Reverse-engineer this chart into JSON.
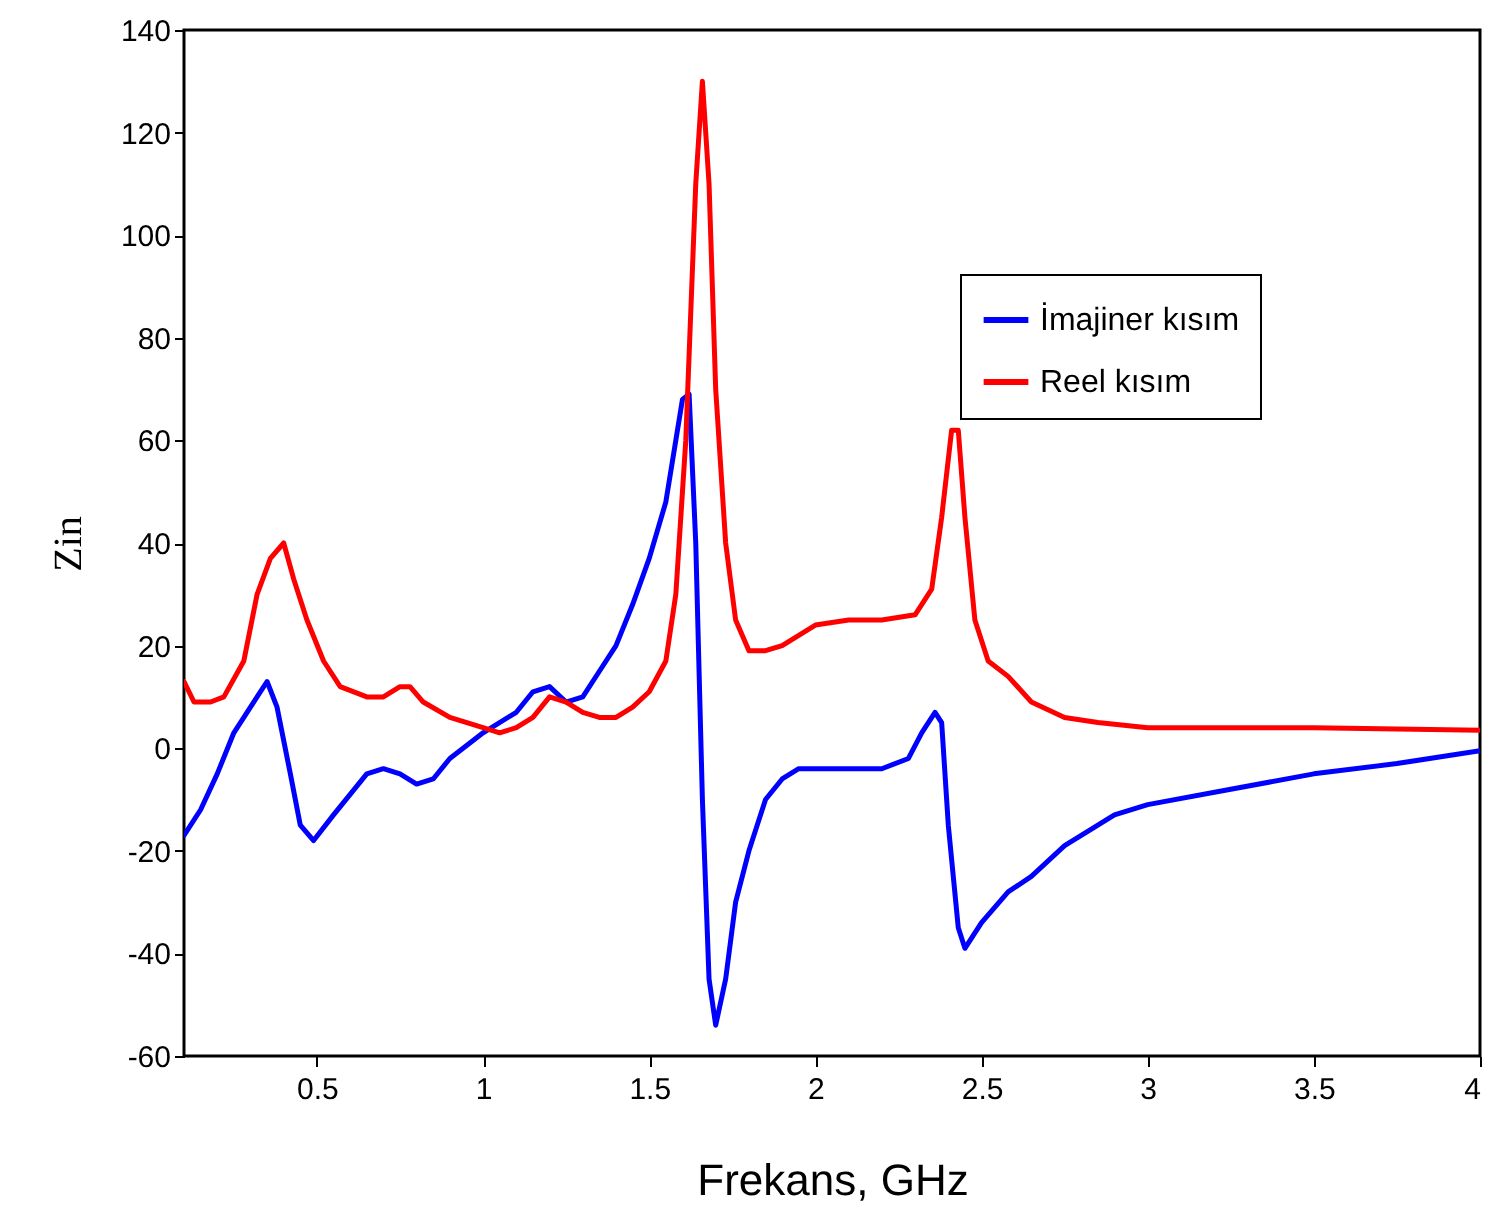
{
  "chart_data": {
    "type": "line",
    "xlabel": "Frekans, GHz",
    "ylabel": "Zin",
    "xlim": [
      0.1,
      4
    ],
    "xticks": [
      0.5,
      1,
      1.5,
      2,
      2.5,
      3,
      3.5,
      4
    ],
    "ylim": [
      -60,
      140
    ],
    "yticks": [
      -60,
      -40,
      -20,
      0,
      20,
      40,
      60,
      80,
      100,
      120,
      140
    ],
    "grid": false,
    "legend": "top right",
    "line_style": "solid",
    "series": [
      {
        "name": "İmajiner kısım",
        "color": "#0000ff",
        "x": [
          0.1,
          0.15,
          0.2,
          0.25,
          0.3,
          0.35,
          0.38,
          0.42,
          0.45,
          0.49,
          0.55,
          0.6,
          0.65,
          0.7,
          0.75,
          0.8,
          0.85,
          0.9,
          1.0,
          1.1,
          1.15,
          1.2,
          1.25,
          1.3,
          1.35,
          1.4,
          1.45,
          1.5,
          1.55,
          1.6,
          1.62,
          1.64,
          1.66,
          1.68,
          1.7,
          1.73,
          1.76,
          1.8,
          1.85,
          1.9,
          1.95,
          2.0,
          2.2,
          2.28,
          2.32,
          2.36,
          2.38,
          2.4,
          2.43,
          2.45,
          2.5,
          2.58,
          2.65,
          2.75,
          2.9,
          3.0,
          3.25,
          3.5,
          3.75,
          4.0
        ],
        "values": [
          -17,
          -12,
          -5,
          3,
          8,
          13,
          8,
          -5,
          -15,
          -18,
          -13,
          -9,
          -5,
          -4,
          -5,
          -7,
          -6,
          -2,
          3,
          7,
          11,
          12,
          9,
          10,
          15,
          20,
          28,
          37,
          48,
          68,
          69,
          40,
          -10,
          -45,
          -54,
          -45,
          -30,
          -20,
          -10,
          -6,
          -4,
          -4,
          -4,
          -2,
          3,
          7,
          5,
          -15,
          -35,
          -39,
          -34,
          -28,
          -25,
          -19,
          -13,
          -11,
          -8,
          -5,
          -3,
          -0.5
        ]
      },
      {
        "name": "Reel kısım",
        "color": "#ff0000",
        "x": [
          0.1,
          0.13,
          0.18,
          0.22,
          0.28,
          0.32,
          0.36,
          0.4,
          0.43,
          0.47,
          0.52,
          0.57,
          0.65,
          0.7,
          0.75,
          0.78,
          0.82,
          0.9,
          1.0,
          1.05,
          1.1,
          1.15,
          1.2,
          1.25,
          1.3,
          1.35,
          1.4,
          1.45,
          1.5,
          1.55,
          1.58,
          1.61,
          1.64,
          1.66,
          1.68,
          1.7,
          1.73,
          1.76,
          1.8,
          1.85,
          1.9,
          1.95,
          2.0,
          2.1,
          2.2,
          2.3,
          2.35,
          2.38,
          2.41,
          2.43,
          2.45,
          2.48,
          2.52,
          2.58,
          2.65,
          2.75,
          2.85,
          3.0,
          3.5,
          4.0
        ],
        "values": [
          13,
          9,
          9,
          10,
          17,
          30,
          37,
          40,
          33,
          25,
          17,
          12,
          10,
          10,
          12,
          12,
          9,
          6,
          4,
          3,
          4,
          6,
          10,
          9,
          7,
          6,
          6,
          8,
          11,
          17,
          30,
          60,
          110,
          130,
          110,
          70,
          40,
          25,
          19,
          19,
          20,
          22,
          24,
          25,
          25,
          26,
          31,
          45,
          62,
          62,
          45,
          25,
          17,
          14,
          9,
          6,
          5,
          4,
          4,
          3.5
        ]
      }
    ]
  }
}
